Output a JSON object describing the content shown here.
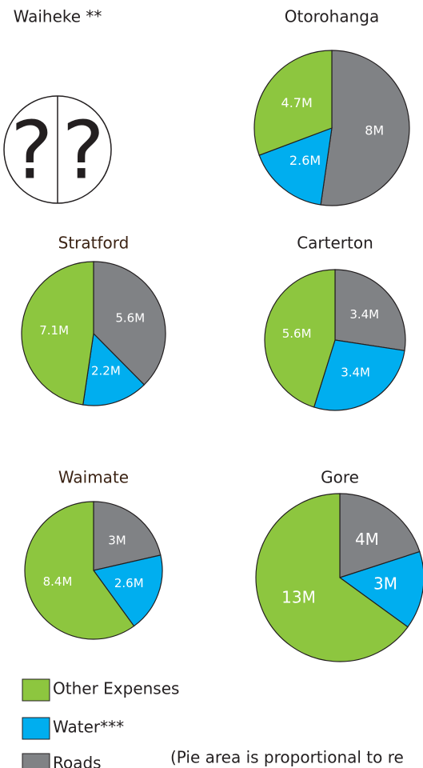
{
  "chart_data": [
    {
      "type": "unknown",
      "title": "Waiheke **",
      "placeholders": [
        "?",
        "?"
      ]
    },
    {
      "type": "pie",
      "title": "Otorohanga",
      "categories": [
        "Roads",
        "Water***",
        "Other Expenses"
      ],
      "colors": [
        "#808285",
        "#00aeef",
        "#8dc63f"
      ],
      "values": [
        8,
        2.6,
        4.7
      ],
      "value_labels": [
        "8M",
        "2.6M",
        "4.7M"
      ]
    },
    {
      "type": "pie",
      "title": "Stratford",
      "categories": [
        "Roads",
        "Water***",
        "Other Expenses"
      ],
      "colors": [
        "#808285",
        "#00aeef",
        "#8dc63f"
      ],
      "values": [
        5.6,
        2.2,
        7.1
      ],
      "value_labels": [
        "5.6M",
        "2.2M",
        "7.1M"
      ]
    },
    {
      "type": "pie",
      "title": "Carterton",
      "categories": [
        "Roads",
        "Water***",
        "Other Expenses"
      ],
      "colors": [
        "#808285",
        "#00aeef",
        "#8dc63f"
      ],
      "values": [
        3.4,
        3.4,
        5.6
      ],
      "value_labels": [
        "3.4M",
        "3.4M",
        "5.6M"
      ]
    },
    {
      "type": "pie",
      "title": "Waimate",
      "categories": [
        "Roads",
        "Water***",
        "Other Expenses"
      ],
      "colors": [
        "#808285",
        "#00aeef",
        "#8dc63f"
      ],
      "values": [
        3,
        2.6,
        8.4
      ],
      "value_labels": [
        "3M",
        "2.6M",
        "8.4M"
      ]
    },
    {
      "type": "pie",
      "title": "Gore",
      "categories": [
        "Roads",
        "Water***",
        "Other Expenses"
      ],
      "colors": [
        "#808285",
        "#00aeef",
        "#8dc63f"
      ],
      "values": [
        4,
        3,
        13
      ],
      "value_labels": [
        "4M",
        "3M",
        "13M"
      ]
    }
  ],
  "legend": [
    {
      "name": "Other Expenses",
      "color": "#8dc63f"
    },
    {
      "name": "Water***",
      "color": "#00aeef"
    },
    {
      "name": "Roads",
      "color": "#808285"
    }
  ],
  "note": "(Pie area is proportional to re"
}
